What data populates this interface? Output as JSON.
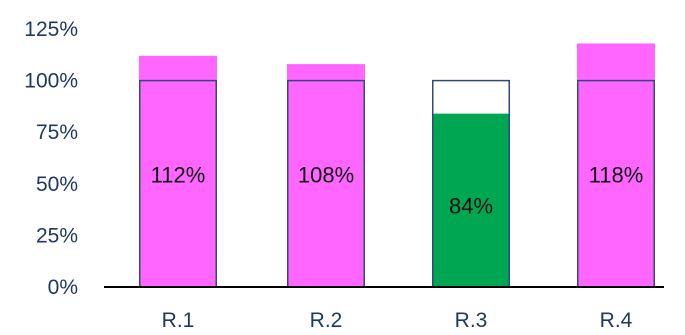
{
  "chart_data": {
    "type": "bar",
    "categories": [
      "R.1",
      "R.2",
      "R.3",
      "R.4"
    ],
    "values": [
      112,
      108,
      84,
      118
    ],
    "data_labels": [
      "112%",
      "108%",
      "84%",
      "118%"
    ],
    "target": 100,
    "ylim": [
      0,
      125
    ],
    "yticks": [
      {
        "value": 0,
        "label": "0%"
      },
      {
        "value": 25,
        "label": "25%"
      },
      {
        "value": 50,
        "label": "50%"
      },
      {
        "value": 75,
        "label": "75%"
      },
      {
        "value": 100,
        "label": "100%"
      },
      {
        "value": 125,
        "label": "125%"
      }
    ],
    "grid": false,
    "colors": {
      "above_target": "#ff66ff",
      "below_target": "#00a651",
      "target_outline": "#2f4a7a",
      "axis": "#000000",
      "tick_text": "#1f3864"
    }
  }
}
